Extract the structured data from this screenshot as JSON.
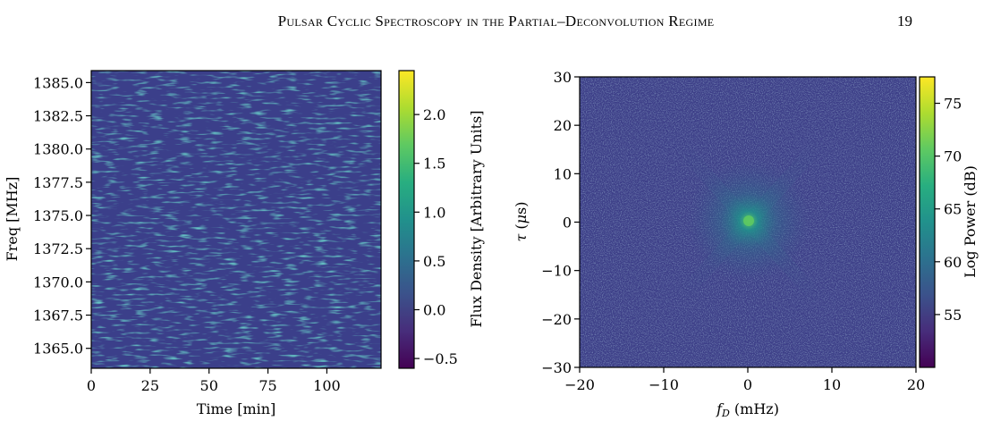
{
  "header": {
    "running_title": "Pulsar Cyclic Spectroscopy in the Partial–Deconvolution Regime",
    "page_number": "19"
  },
  "chart_data": [
    {
      "type": "heatmap",
      "title": "",
      "xlabel": "Time [min]",
      "ylabel": "Freq [MHz]",
      "xlim": [
        0,
        123
      ],
      "ylim": [
        1363.5,
        1385.9
      ],
      "x_ticks": [
        0,
        25,
        50,
        75,
        100
      ],
      "x_tick_labels": [
        "0",
        "25",
        "50",
        "75",
        "100"
      ],
      "y_ticks": [
        1365.0,
        1367.5,
        1370.0,
        1372.5,
        1375.0,
        1377.5,
        1380.0,
        1382.5,
        1385.0
      ],
      "y_tick_labels": [
        "1365.0",
        "1367.5",
        "1370.0",
        "1372.5",
        "1375.0",
        "1377.5",
        "1380.0",
        "1382.5",
        "1385.0"
      ],
      "colormap": "viridis",
      "colorbar": {
        "label": "Flux Density [Arbitrary Units]",
        "range": [
          -0.6,
          2.45
        ],
        "ticks": [
          -0.5,
          0.0,
          0.5,
          1.0,
          1.5,
          2.0
        ],
        "tick_labels": [
          "−0.5",
          "0.0",
          "0.5",
          "1.0",
          "1.5",
          "2.0"
        ]
      }
    },
    {
      "type": "heatmap",
      "title": "",
      "xlabel": "f_D (mHz)",
      "ylabel": "τ (μs)",
      "xlim": [
        -20,
        20
      ],
      "ylim": [
        -30,
        30
      ],
      "x_ticks": [
        -20,
        -10,
        0,
        10,
        20
      ],
      "x_tick_labels": [
        "−20",
        "−10",
        "0",
        "10",
        "20"
      ],
      "y_ticks": [
        -30,
        -20,
        -10,
        0,
        10,
        20,
        30
      ],
      "y_tick_labels": [
        "−30",
        "−20",
        "−10",
        "0",
        "10",
        "20",
        "30"
      ],
      "colormap": "viridis",
      "colorbar": {
        "label": "Log Power (dB)",
        "range": [
          50,
          77.5
        ],
        "ticks": [
          55,
          60,
          65,
          70,
          75
        ],
        "tick_labels": [
          "55",
          "60",
          "65",
          "70",
          "75"
        ]
      }
    }
  ]
}
